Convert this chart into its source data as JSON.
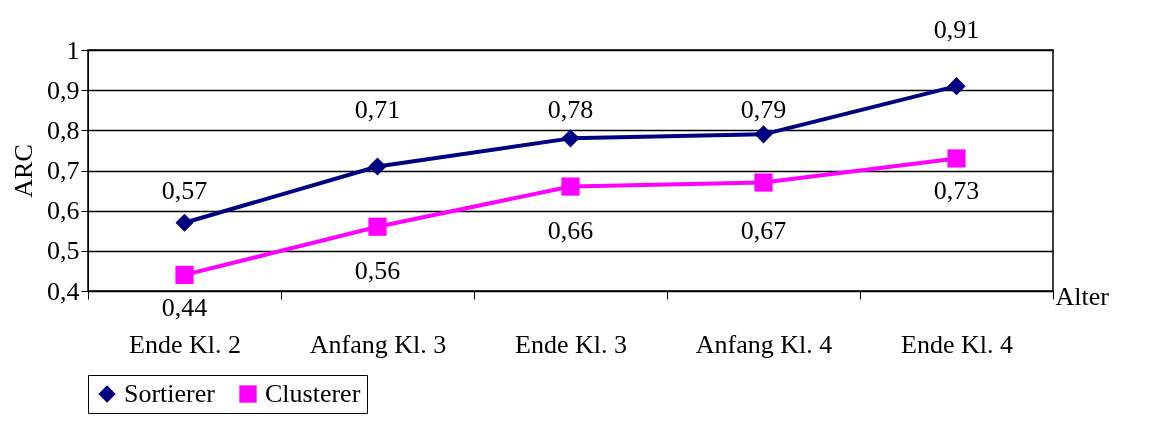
{
  "chart_data": {
    "type": "line",
    "ylabel": "ARC",
    "xlabel": "Alter",
    "categories": [
      "Ende Kl. 2",
      "Anfang Kl. 3",
      "Ende Kl. 3",
      "Anfang Kl. 4",
      "Ende Kl. 4"
    ],
    "series": [
      {
        "name": "Sortierer",
        "color": "#000080",
        "marker": "diamond",
        "values": [
          0.57,
          0.71,
          0.78,
          0.79,
          0.91
        ],
        "value_labels": [
          "0,57",
          "0,71",
          "0,78",
          "0,79",
          "0,91"
        ]
      },
      {
        "name": "Clusterer",
        "color": "#ff00ff",
        "marker": "square",
        "values": [
          0.44,
          0.56,
          0.66,
          0.67,
          0.73
        ],
        "value_labels": [
          "0,44",
          "0,56",
          "0,66",
          "0,67",
          "0,73"
        ]
      }
    ],
    "ylim": [
      0.4,
      1
    ],
    "yticks": [
      {
        "value": 0.4,
        "label": "0,4"
      },
      {
        "value": 0.5,
        "label": "0,5"
      },
      {
        "value": 0.6,
        "label": "0,6"
      },
      {
        "value": 0.7,
        "label": "0,7"
      },
      {
        "value": 0.8,
        "label": "0,8"
      },
      {
        "value": 0.9,
        "label": "0,9"
      },
      1
    ],
    "grid": "y",
    "legend": "bottom",
    "line_style": "solid"
  }
}
